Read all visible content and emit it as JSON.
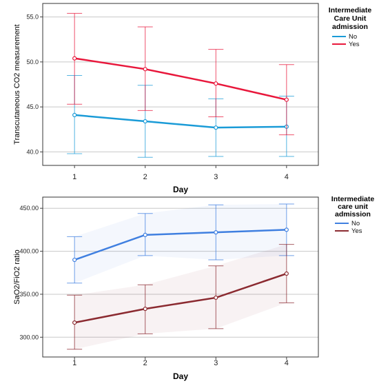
{
  "chart_data": [
    {
      "type": "line",
      "title": "",
      "xlabel": "Day",
      "ylabel": "Transcutaneous CO2 measurement",
      "ylim": [
        38.5,
        56.5
      ],
      "x": [
        1,
        2,
        3,
        4
      ],
      "x_tick_labels": [
        "1",
        "2",
        "3",
        "4"
      ],
      "y_ticks": [
        40.0,
        45.0,
        50.0,
        55.0
      ],
      "y_tick_labels": [
        "40.0",
        "45.0",
        "50.0",
        "55.0"
      ],
      "grid": "horizontal",
      "legend": {
        "title": "Intermediate Care Unit admission",
        "title_lines": [
          "Intermediate",
          "Care Unit",
          "admission"
        ],
        "placement": "right"
      },
      "series": [
        {
          "name": "No",
          "color": "#1a9bd7",
          "values": [
            44.1,
            43.4,
            42.7,
            42.8
          ],
          "lower": [
            39.8,
            39.4,
            39.5,
            39.5
          ],
          "upper": [
            48.5,
            47.4,
            45.9,
            46.2
          ]
        },
        {
          "name": "Yes",
          "color": "#e8173b",
          "values": [
            50.4,
            49.2,
            47.6,
            45.8
          ],
          "lower": [
            45.3,
            44.6,
            43.9,
            41.9
          ],
          "upper": [
            55.4,
            53.9,
            51.4,
            49.7
          ]
        }
      ]
    },
    {
      "type": "line",
      "title": "",
      "xlabel": "Day",
      "ylabel": "SaO2/FiO2 ratio",
      "ylim": [
        277,
        463
      ],
      "x": [
        1,
        2,
        3,
        4
      ],
      "x_tick_labels": [
        "1",
        "2",
        "3",
        "4"
      ],
      "y_ticks": [
        300.0,
        350.0,
        400.0,
        450.0
      ],
      "y_tick_labels": [
        "300.00",
        "350.00",
        "400.00",
        "450.00"
      ],
      "grid": "horizontal",
      "legend": {
        "title": "Intermediate care unit admission",
        "title_lines": [
          "Intermediate",
          "care unit",
          "admission"
        ],
        "placement": "right"
      },
      "series": [
        {
          "name": "No",
          "color": "#3f7fe0",
          "values": [
            390,
            419,
            422,
            425
          ],
          "lower": [
            363,
            395,
            390,
            395
          ],
          "upper": [
            417,
            444,
            454,
            455
          ]
        },
        {
          "name": "Yes",
          "color": "#8b2a30",
          "values": [
            317,
            333,
            346,
            374
          ],
          "lower": [
            286,
            304,
            310,
            340
          ],
          "upper": [
            349,
            361,
            383,
            408
          ]
        }
      ]
    }
  ]
}
